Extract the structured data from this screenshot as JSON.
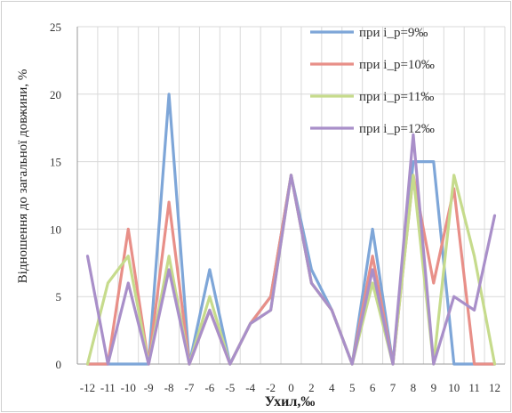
{
  "chart_data": {
    "type": "line",
    "ylabel": "Відношення до загальної довжини, %",
    "xlabel": "Ухил,‰",
    "categories": [
      "-12",
      "-11",
      "-10",
      "-9",
      "-8",
      "-7",
      "-6",
      "-5",
      "-4",
      "-2",
      "0",
      "2",
      "4",
      "5",
      "6",
      "7",
      "8",
      "9",
      "10",
      "11",
      "12"
    ],
    "yticks": [
      "0",
      "5",
      "10",
      "15",
      "20",
      "25"
    ],
    "ylim": [
      0,
      25
    ],
    "grid": true,
    "legend_position": "top-right",
    "series": [
      {
        "name": "при i_p=9‰",
        "color": "#7ea6d8",
        "values": [
          0,
          0,
          0,
          0,
          20,
          0,
          7,
          0,
          3,
          5,
          14,
          7,
          4,
          0,
          10,
          0,
          15,
          15,
          0,
          0,
          0
        ]
      },
      {
        "name": "при i_p=10‰",
        "color": "#e88f88",
        "values": [
          0,
          0,
          10,
          0,
          12,
          0,
          4,
          0,
          3,
          5,
          14,
          6,
          4,
          0,
          8,
          0,
          14,
          6,
          13,
          0,
          0
        ]
      },
      {
        "name": "при i_p=11‰",
        "color": "#c6db8c",
        "values": [
          0,
          6,
          8,
          0,
          8,
          0,
          5,
          0,
          3,
          4,
          14,
          6,
          4,
          0,
          6,
          0,
          14,
          0,
          14,
          8,
          0
        ]
      },
      {
        "name": "при i_p=12‰",
        "color": "#a98fc9",
        "values": [
          8,
          0,
          6,
          0,
          7,
          0,
          4,
          0,
          3,
          4,
          14,
          6,
          4,
          0,
          7,
          0,
          17,
          0,
          5,
          4,
          11
        ]
      }
    ]
  }
}
